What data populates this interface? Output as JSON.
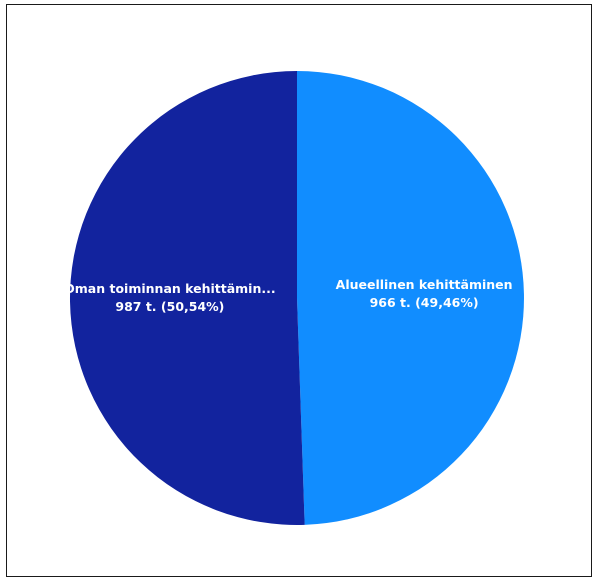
{
  "chart_data": {
    "type": "pie",
    "title": "",
    "series": [
      {
        "slices": [
          {
            "label": "Alueellinen kehittäminen",
            "value_label": "966 t. (49,46%)",
            "value": 966,
            "percent": 49.46,
            "color": "#118DFF"
          },
          {
            "label": "Oman toiminnan kehittämin...",
            "value_label": "987 t. (50,54%)",
            "value": 987,
            "percent": 50.54,
            "color": "#12239E"
          }
        ]
      }
    ],
    "legend": "none"
  }
}
